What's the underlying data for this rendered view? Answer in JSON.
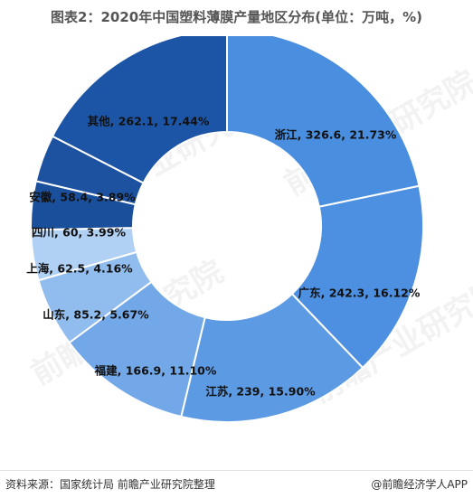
{
  "title": "图表2：2020年中国塑料薄膜产量地区分布(单位：万吨，%)",
  "watermark_text": "前瞻产业研究院",
  "footer": {
    "source": "资料来源：国家统计局 前瞻产业研究院整理",
    "brand": "@前瞻经济学人APP"
  },
  "chart_data": {
    "type": "donut",
    "title": "图表2：2020年中国塑料薄膜产量地区分布(单位：万吨，%)",
    "unit": "万吨，%",
    "slices": [
      {
        "name": "浙江",
        "value": 326.6,
        "percent": 21.73,
        "label": "浙江, 326.6, 21.73%",
        "color": "#4a8ee0"
      },
      {
        "name": "广东",
        "value": 242.3,
        "percent": 16.12,
        "label": "广东, 242.3, 16.12%",
        "color": "#4d8fe0"
      },
      {
        "name": "江苏",
        "value": 239,
        "percent": 15.9,
        "label": "江苏, 239, 15.90%",
        "color": "#5d9ae4"
      },
      {
        "name": "福建",
        "value": 166.9,
        "percent": 11.1,
        "label": "福建, 166.9, 11.10%",
        "color": "#73a8e8"
      },
      {
        "name": "山东",
        "value": 85.2,
        "percent": 5.67,
        "label": "山东, 85.2, 5.67%",
        "color": "#91bdee"
      },
      {
        "name": "上海",
        "value": 62.5,
        "percent": 4.16,
        "label": "上海, 62.5, 4.16%",
        "color": "#b0d0f4"
      },
      {
        "name": "四川",
        "value": 60,
        "percent": 3.99,
        "label": "四川, 60, 3.99%",
        "color": "#1a4f9c"
      },
      {
        "name": "安徽",
        "value": 58.4,
        "percent": 3.89,
        "label": "安徽, 58.4, 3.89%",
        "color": "#1c52a0"
      },
      {
        "name": "其他",
        "value": 262.1,
        "percent": 17.44,
        "label": "其他, 262.1, 17.44%",
        "color": "#1d55a6"
      }
    ]
  }
}
